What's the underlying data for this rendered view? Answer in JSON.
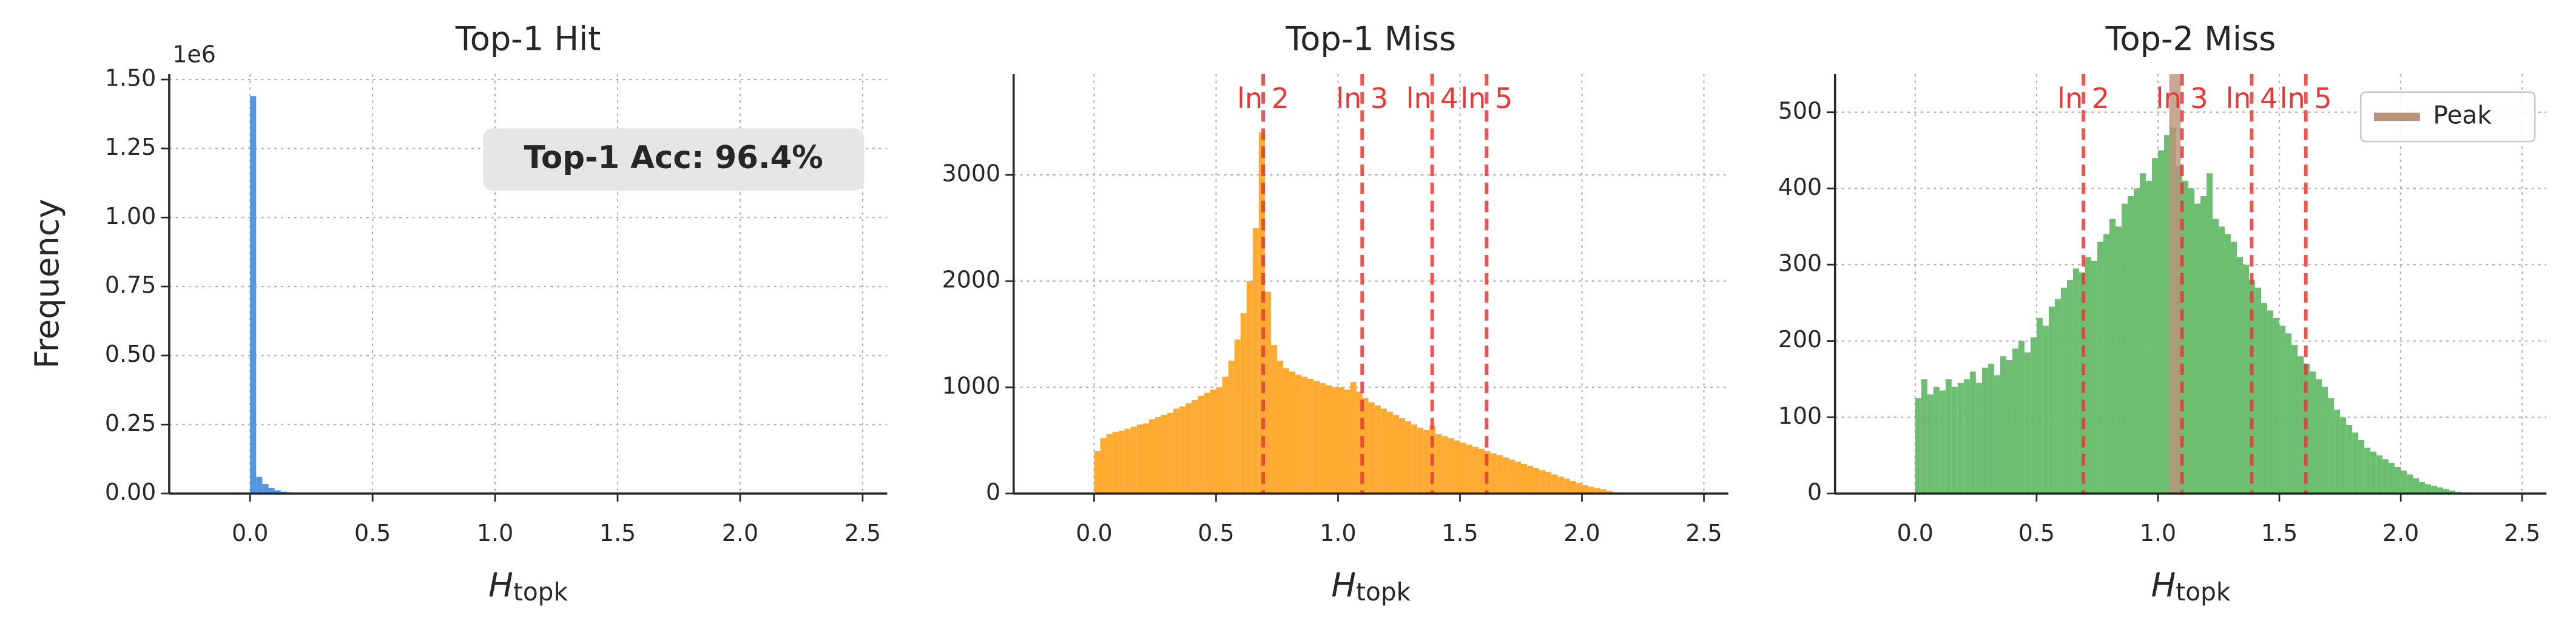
{
  "chart_data": [
    {
      "type": "histogram",
      "title": "Top-1 Hit",
      "ylabel": "Frequency",
      "xlabel": {
        "main": "H",
        "sub": "topk"
      },
      "offset_text": "1e6",
      "annotation": "Top-1 Acc: 96.4%",
      "color": "#4a90e2",
      "grid": true,
      "bins": [
        0,
        0.025,
        0.05,
        0.075,
        0.1,
        0.125,
        0.15,
        0.175,
        0.2
      ],
      "counts": [
        1440000,
        60000,
        35000,
        20000,
        12000,
        7000,
        4000,
        2000
      ],
      "xlim": [
        -0.33,
        2.6
      ],
      "xticks": [
        {
          "value": 0,
          "label": "0.0"
        },
        0.5,
        {
          "value": 1,
          "label": "1.0"
        },
        1.5,
        {
          "value": 2,
          "label": "2.0"
        },
        2.5
      ],
      "ylim": [
        0,
        1520000
      ],
      "yticks": [
        {
          "value": 0,
          "label": "0.00"
        },
        {
          "value": 250000,
          "label": "0.25"
        },
        {
          "value": 500000,
          "label": "0.50"
        },
        {
          "value": 750000,
          "label": "0.75"
        },
        {
          "value": 1000000,
          "label": "1.00"
        },
        {
          "value": 1250000,
          "label": "1.25"
        },
        {
          "value": 1500000,
          "label": "1.50"
        }
      ]
    },
    {
      "type": "histogram",
      "title": "Top-1 Miss",
      "xlabel": {
        "main": "H",
        "sub": "topk"
      },
      "color": "#ffa726",
      "grid": true,
      "bins": [
        0,
        0.025,
        0.05,
        0.075,
        0.1,
        0.125,
        0.15,
        0.175,
        0.2,
        0.225,
        0.25,
        0.275,
        0.3,
        0.325,
        0.35,
        0.375,
        0.4,
        0.425,
        0.45,
        0.475,
        0.5,
        0.525,
        0.55,
        0.575,
        0.6,
        0.625,
        0.65,
        0.675,
        0.7,
        0.725,
        0.75,
        0.775,
        0.8,
        0.825,
        0.85,
        0.875,
        0.9,
        0.925,
        0.95,
        0.975,
        1,
        1.025,
        1.05,
        1.075,
        1.1,
        1.125,
        1.15,
        1.175,
        1.2,
        1.225,
        1.25,
        1.275,
        1.3,
        1.325,
        1.35,
        1.375,
        1.4,
        1.425,
        1.45,
        1.475,
        1.5,
        1.525,
        1.55,
        1.575,
        1.6,
        1.625,
        1.65,
        1.675,
        1.7,
        1.725,
        1.75,
        1.775,
        1.8,
        1.825,
        1.85,
        1.875,
        1.9,
        1.925,
        1.95,
        1.975,
        2,
        2.025,
        2.05,
        2.075,
        2.1,
        2.125,
        2.15
      ],
      "counts": [
        400,
        520,
        560,
        580,
        590,
        610,
        630,
        650,
        660,
        700,
        720,
        740,
        760,
        800,
        820,
        850,
        880,
        920,
        950,
        980,
        1000,
        1100,
        1250,
        1450,
        1700,
        2000,
        2500,
        3400,
        1900,
        1400,
        1250,
        1180,
        1150,
        1120,
        1100,
        1080,
        1060,
        1040,
        1020,
        1000,
        1000,
        980,
        1050,
        960,
        900,
        860,
        830,
        800,
        770,
        740,
        710,
        680,
        650,
        620,
        600,
        640,
        560,
        540,
        520,
        500,
        480,
        460,
        440,
        420,
        400,
        380,
        360,
        340,
        320,
        300,
        280,
        260,
        240,
        220,
        200,
        180,
        160,
        140,
        120,
        100,
        80,
        65,
        50,
        40,
        25,
        10
      ],
      "vlines": [
        {
          "label": "ln 2",
          "value": 0.693
        },
        {
          "label": "ln 3",
          "value": 1.099
        },
        {
          "label": "ln 4",
          "value": 1.386
        },
        {
          "label": "ln 5",
          "value": 1.609
        }
      ],
      "vline_color": "#e53935",
      "xlim": [
        -0.33,
        2.6
      ],
      "xticks": [
        {
          "value": 0,
          "label": "0.0"
        },
        0.5,
        {
          "value": 1,
          "label": "1.0"
        },
        1.5,
        {
          "value": 2,
          "label": "2.0"
        },
        2.5
      ],
      "ylim": [
        0,
        3950
      ],
      "yticks": [
        0,
        1000,
        2000,
        3000
      ]
    },
    {
      "type": "histogram",
      "title": "Top-2 Miss",
      "xlabel": {
        "main": "H",
        "sub": "topk"
      },
      "color": "#66bb6a",
      "grid": true,
      "bins": [
        0,
        0.025,
        0.05,
        0.075,
        0.1,
        0.125,
        0.15,
        0.175,
        0.2,
        0.225,
        0.25,
        0.275,
        0.3,
        0.325,
        0.35,
        0.375,
        0.4,
        0.425,
        0.45,
        0.475,
        0.5,
        0.525,
        0.55,
        0.575,
        0.6,
        0.625,
        0.65,
        0.675,
        0.7,
        0.725,
        0.75,
        0.775,
        0.8,
        0.825,
        0.85,
        0.875,
        0.9,
        0.925,
        0.95,
        0.975,
        1,
        1.025,
        1.05,
        1.075,
        1.1,
        1.125,
        1.15,
        1.175,
        1.2,
        1.225,
        1.25,
        1.275,
        1.3,
        1.325,
        1.35,
        1.375,
        1.4,
        1.425,
        1.45,
        1.475,
        1.5,
        1.525,
        1.55,
        1.575,
        1.6,
        1.625,
        1.65,
        1.675,
        1.7,
        1.725,
        1.75,
        1.775,
        1.8,
        1.825,
        1.85,
        1.875,
        1.9,
        1.925,
        1.95,
        1.975,
        2,
        2.025,
        2.05,
        2.075,
        2.1,
        2.125,
        2.15,
        2.175,
        2.2,
        2.225,
        2.25
      ],
      "counts": [
        125,
        150,
        130,
        140,
        135,
        150,
        140,
        145,
        150,
        160,
        145,
        165,
        170,
        155,
        180,
        175,
        190,
        200,
        185,
        205,
        230,
        220,
        245,
        255,
        270,
        280,
        295,
        290,
        310,
        305,
        330,
        340,
        360,
        350,
        380,
        390,
        400,
        420,
        410,
        440,
        450,
        470,
        480,
        430,
        410,
        400,
        380,
        390,
        420,
        360,
        350,
        340,
        330,
        310,
        300,
        280,
        270,
        250,
        240,
        230,
        220,
        210,
        195,
        180,
        170,
        160,
        150,
        140,
        125,
        110,
        100,
        90,
        80,
        70,
        60,
        55,
        50,
        45,
        40,
        35,
        30,
        25,
        20,
        15,
        12,
        10,
        8,
        6,
        4,
        2
      ],
      "vlines": [
        {
          "label": "ln 2",
          "value": 0.693
        },
        {
          "label": "ln 3",
          "value": 1.099
        },
        {
          "label": "ln 4",
          "value": 1.386
        },
        {
          "label": "ln 5",
          "value": 1.609
        }
      ],
      "vline_color": "#e53935",
      "peak": {
        "name": "Peak",
        "value": 1.07,
        "color": "#b8937a"
      },
      "legend": "upper right",
      "xlim": [
        -0.33,
        2.6
      ],
      "xticks": [
        {
          "value": 0,
          "label": "0.0"
        },
        0.5,
        {
          "value": 1,
          "label": "1.0"
        },
        1.5,
        {
          "value": 2,
          "label": "2.0"
        },
        2.5
      ],
      "ylim": [
        0,
        550
      ],
      "yticks": [
        0,
        100,
        200,
        300,
        400,
        500
      ]
    }
  ]
}
